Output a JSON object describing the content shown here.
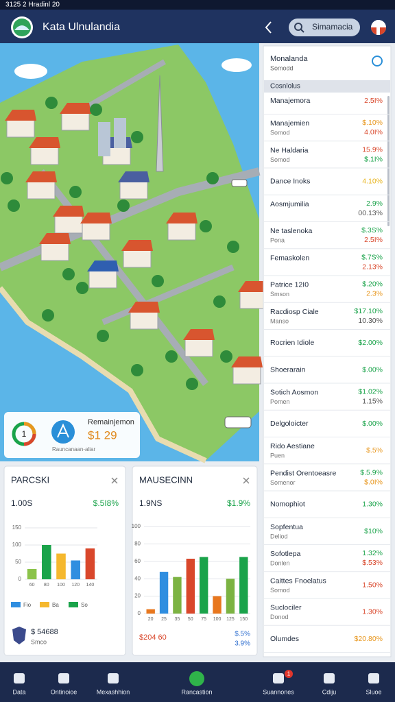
{
  "status_bar": {
    "text": "3125 2 Hradinl 20"
  },
  "header": {
    "title": "Kata Ulnulandia",
    "search": "Simamacia"
  },
  "map_card": {
    "donut_label": "1",
    "title": "Remainjemon",
    "value": "$1 29",
    "caption": "Rauncanaan-aliar"
  },
  "cards": [
    {
      "title": "PARCSKI",
      "value": "1.00S",
      "change": "$.5I8%",
      "chart": {
        "type": "bar",
        "categories": [
          "60",
          "80",
          "100",
          "120",
          "140"
        ],
        "values": [
          30,
          100,
          75,
          55,
          90
        ],
        "colors": [
          "#8bc34a",
          "#1aa34a",
          "#f5b82e",
          "#2f8ee0",
          "#d9472b"
        ],
        "ylim": [
          0,
          150
        ],
        "yticks": [
          0,
          50,
          100,
          150
        ]
      },
      "legend": [
        {
          "name": "Fio",
          "color": "#2f8ee0"
        },
        {
          "name": "Ba",
          "color": "#f5b82e"
        },
        {
          "name": "So",
          "color": "#1aa34a"
        }
      ],
      "footer_value": "$ 54688",
      "footer_sub": "Smco"
    },
    {
      "title": "MAUSECINN",
      "value": "1.9NS",
      "change": "$1.9%",
      "chart": {
        "type": "bar",
        "categories": [
          "20",
          "25",
          "35",
          "50",
          "75",
          "100",
          "125",
          "150"
        ],
        "values": [
          5,
          48,
          42,
          63,
          65,
          20,
          40,
          65
        ],
        "colors": [
          "#e8771e",
          "#2f8ee0",
          "#7cb342",
          "#d9472b",
          "#1aa34a",
          "#e8771e",
          "#7cb342",
          "#1aa34a"
        ],
        "ylim": [
          0,
          100
        ],
        "yticks": [
          0,
          20,
          40,
          60,
          80,
          100
        ]
      },
      "footer_value": "$204 60",
      "footer_changes": [
        "$.5%",
        "3.9%"
      ]
    }
  ],
  "list": {
    "title": "Monalanda",
    "subtitle": "Somodd",
    "section": "Cosnlolus",
    "rows": [
      {
        "name": "Manajemora",
        "values": [
          {
            "text": "2.5I%",
            "color": "#d9472b"
          }
        ]
      },
      {
        "name": "Manajemien",
        "sub": "Somod",
        "values": [
          {
            "text": "$.10%",
            "color": "#e8971e"
          },
          {
            "text": "4.0I%",
            "color": "#d9472b"
          }
        ]
      },
      {
        "name": "Ne Haldaria",
        "sub": "Somod",
        "values": [
          {
            "text": "15.9%",
            "color": "#d9472b"
          },
          {
            "text": "$.1I%",
            "color": "#1aa34a"
          }
        ]
      },
      {
        "name": "Dance Inoks",
        "values": [
          {
            "text": "4.10%",
            "color": "#e8b51e"
          }
        ]
      },
      {
        "name": "Aosmjumilia",
        "sub": "",
        "values": [
          {
            "text": "2.9%",
            "color": "#1aa34a"
          },
          {
            "text": "00.13%",
            "color": "#555555"
          }
        ]
      },
      {
        "name": "Ne taslenoka",
        "sub": "Pona",
        "values": [
          {
            "text": "$.3S%",
            "color": "#1aa34a"
          },
          {
            "text": "2.5I%",
            "color": "#d9472b"
          }
        ]
      },
      {
        "name": "Femaskolen",
        "sub": "",
        "values": [
          {
            "text": "$.7S%",
            "color": "#1aa34a"
          },
          {
            "text": "2.13%",
            "color": "#d9472b"
          }
        ]
      },
      {
        "name": "Patrice 12I0",
        "sub": "Smson",
        "values": [
          {
            "text": "$.20%",
            "color": "#1aa34a"
          },
          {
            "text": "2.3%",
            "color": "#e8971e"
          }
        ]
      },
      {
        "name": "Racdiosp Ciale",
        "sub": "Manso",
        "values": [
          {
            "text": "$17.10%",
            "color": "#1aa34a"
          },
          {
            "text": "10.30%",
            "color": "#555555"
          }
        ]
      },
      {
        "name": "Rocrien Idiole",
        "values": [
          {
            "text": "$2.00%",
            "color": "#1aa34a"
          }
        ]
      },
      {
        "name": "Shoerarain",
        "values": [
          {
            "text": "$.00%",
            "color": "#1aa34a"
          }
        ]
      },
      {
        "name": "Sotich Aosmon",
        "sub": "Pomen",
        "values": [
          {
            "text": "$1.02%",
            "color": "#1aa34a"
          },
          {
            "text": "1.15%",
            "color": "#555555"
          }
        ]
      },
      {
        "name": "Delgoloicter",
        "values": [
          {
            "text": "$.00%",
            "color": "#1aa34a"
          }
        ]
      },
      {
        "name": "Rido Aestiane",
        "sub": "Puen",
        "values": [
          {
            "text": "$.5%",
            "color": "#e8971e"
          }
        ]
      },
      {
        "name": "Pendist Orentoeasre",
        "sub": "Somenor",
        "values": [
          {
            "text": "$.5.9%",
            "color": "#1aa34a"
          },
          {
            "text": "$.0I%",
            "color": "#e8971e"
          }
        ]
      },
      {
        "name": "Nomophiot",
        "values": [
          {
            "text": "1.30%",
            "color": "#1aa34a"
          }
        ]
      },
      {
        "name": "Sopfentua",
        "sub": "Deliod",
        "values": [
          {
            "text": "$10%",
            "color": "#1aa34a"
          }
        ]
      },
      {
        "name": "Sofotlepa",
        "sub": "Donlen",
        "values": [
          {
            "text": "1.32%",
            "color": "#1aa34a"
          },
          {
            "text": "$.53%",
            "color": "#d9472b"
          }
        ]
      },
      {
        "name": "Caittes Fnoelatus",
        "sub": "Somod",
        "values": [
          {
            "text": "1.50%",
            "color": "#d9472b"
          }
        ]
      },
      {
        "name": "Suclociler",
        "sub": "Donod",
        "values": [
          {
            "text": "1.30%",
            "color": "#d9472b"
          }
        ]
      },
      {
        "name": "Olumdes",
        "values": [
          {
            "text": "$20.80%",
            "color": "#e8971e"
          }
        ]
      }
    ]
  },
  "nav": {
    "items": [
      "Data",
      "Ontinoioe",
      "Mexashhion",
      "Rancastion",
      "Suannones",
      "Cdiju",
      "Sluoe"
    ],
    "badge": "1"
  }
}
